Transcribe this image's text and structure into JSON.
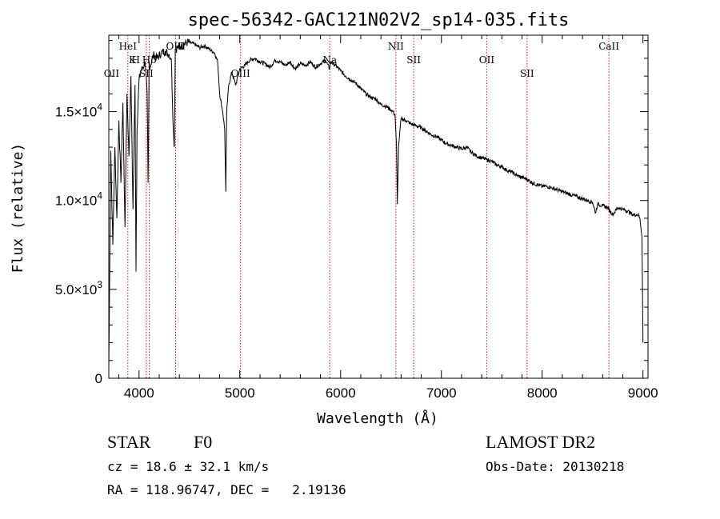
{
  "chart_data": {
    "type": "line",
    "title": "spec-56342-GAC121N02V2_sp14-035.fits",
    "xlabel": "Wavelength (Å)",
    "ylabel": "Flux (relative)",
    "xlim": [
      3700,
      9050
    ],
    "ylim": [
      0,
      19300
    ],
    "grid": false,
    "x_ticks": [
      4000,
      5000,
      6000,
      7000,
      8000,
      9000
    ],
    "x_tick_labels": [
      "4000",
      "5000",
      "6000",
      "7000",
      "8000",
      "9000"
    ],
    "y_ticks": [
      0,
      5000,
      10000,
      15000
    ],
    "y_tick_labels": [
      {
        "base": "0",
        "exp": ""
      },
      {
        "base": "5.0×10",
        "exp": "3"
      },
      {
        "base": "1.0×10",
        "exp": "4"
      },
      {
        "base": "1.5×10",
        "exp": "4"
      }
    ],
    "series": [
      {
        "x": [
          3700,
          3720,
          3740,
          3760,
          3780,
          3800,
          3820,
          3840,
          3860,
          3880,
          3900,
          3920,
          3940,
          3960,
          3970,
          3980,
          4000,
          4020,
          4040,
          4060,
          4080,
          4090,
          4100,
          4110,
          4130,
          4150,
          4180,
          4220,
          4260,
          4300,
          4320,
          4340,
          4350,
          4360,
          4380,
          4420,
          4480,
          4550,
          4600,
          4650,
          4700,
          4750,
          4780,
          4800,
          4830,
          4850,
          4861,
          4870,
          4890,
          4920,
          4960,
          5000,
          5050,
          5100,
          5150,
          5200,
          5250,
          5300,
          5350,
          5400,
          5450,
          5500,
          5550,
          5600,
          5650,
          5700,
          5750,
          5800,
          5850,
          5890,
          5900,
          5950,
          6000,
          6050,
          6100,
          6150,
          6200,
          6250,
          6300,
          6350,
          6400,
          6450,
          6500,
          6520,
          6540,
          6555,
          6563,
          6575,
          6600,
          6650,
          6700,
          6750,
          6800,
          6850,
          6900,
          6950,
          7000,
          7050,
          7100,
          7150,
          7200,
          7250,
          7300,
          7350,
          7400,
          7450,
          7500,
          7550,
          7600,
          7650,
          7700,
          7750,
          7800,
          7850,
          7900,
          7950,
          8000,
          8050,
          8100,
          8150,
          8200,
          8250,
          8300,
          8350,
          8400,
          8450,
          8500,
          8530,
          8550,
          8600,
          8650,
          8700,
          8750,
          8800,
          8850,
          8900,
          8950,
          8970,
          8990,
          9000
        ],
        "y": [
          500,
          12800,
          7500,
          13000,
          9000,
          14500,
          11000,
          15500,
          8500,
          16000,
          12500,
          17000,
          9500,
          16500,
          6000,
          14000,
          16800,
          17300,
          17500,
          17800,
          16000,
          11000,
          17800,
          17500,
          18000,
          18200,
          18000,
          18300,
          18400,
          18200,
          18000,
          14000,
          13000,
          18500,
          18600,
          18700,
          18900,
          18800,
          18600,
          18700,
          18500,
          18300,
          17800,
          16000,
          15000,
          14000,
          10500,
          15000,
          16500,
          17200,
          16500,
          17400,
          17600,
          17900,
          18000,
          17800,
          17700,
          17500,
          17900,
          17800,
          17600,
          17800,
          17400,
          17700,
          17600,
          17800,
          17500,
          17700,
          17900,
          17400,
          17800,
          17600,
          17300,
          17000,
          16800,
          16600,
          16300,
          16000,
          15800,
          15700,
          15400,
          15300,
          15100,
          15000,
          14800,
          13000,
          9800,
          13000,
          14600,
          14500,
          14300,
          14200,
          14100,
          13900,
          13700,
          13600,
          13400,
          13200,
          13100,
          13000,
          12900,
          13000,
          12700,
          12500,
          12400,
          12300,
          12200,
          12000,
          11900,
          11700,
          11600,
          11400,
          11300,
          11200,
          11000,
          10900,
          10800,
          10800,
          10700,
          10600,
          10500,
          10400,
          10300,
          10200,
          10100,
          10000,
          9900,
          9300,
          9800,
          9700,
          9600,
          9200,
          9600,
          9500,
          9400,
          9200,
          9200,
          9000,
          8000,
          2000
        ]
      }
    ],
    "lines_labels": [
      {
        "name": "OII",
        "x": 3727,
        "tier": 2
      },
      {
        "name": "HeI",
        "x": 3889,
        "tier": 0
      },
      {
        "name": "K",
        "x": 3934,
        "tier": 1
      },
      {
        "name": "H",
        "x": 3968,
        "tier": 1
      },
      {
        "name": "SII",
        "x": 4072,
        "tier": 2
      },
      {
        "name": "Hδ",
        "x": 4102,
        "tier": 1
      },
      {
        "name": "OIII",
        "x": 4363,
        "tier": 0
      },
      {
        "name": "OIII",
        "x": 5007,
        "tier": 2
      },
      {
        "name": "Na",
        "x": 5893,
        "tier": 1
      },
      {
        "name": "NII",
        "x": 6549,
        "tier": 0
      },
      {
        "name": "SII",
        "x": 6725,
        "tier": 1
      },
      {
        "name": "OII",
        "x": 7450,
        "tier": 1
      },
      {
        "name": "SII",
        "x": 7850,
        "tier": 2
      },
      {
        "name": "CaII",
        "x": 8662,
        "tier": 0
      }
    ],
    "vlines_x": [
      3889,
      4072,
      4102,
      4363,
      5007,
      5893,
      6549,
      6725,
      7450,
      7850,
      8662
    ]
  },
  "info": {
    "object_class": "STAR",
    "subclass": "F0",
    "survey": "LAMOST DR2",
    "cz": "cz = 18.6 ± 32.1 km/s",
    "obs_date": "Obs-Date: 20130218",
    "coords": "RA = 118.96747, DEC =   2.19136"
  },
  "colors": {
    "spectrum": "#000000",
    "vline": "#b22222",
    "axes": "#000000"
  }
}
